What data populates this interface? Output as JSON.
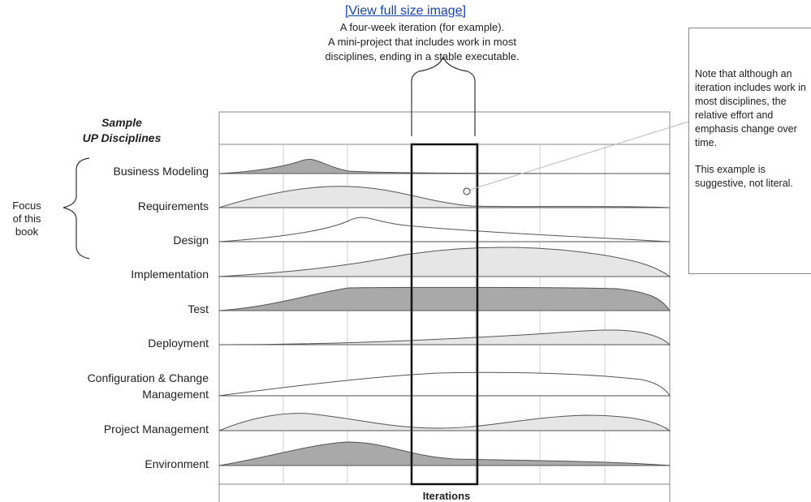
{
  "header": {
    "link_text": "[View full size image]",
    "caption_lines": [
      "A four-week iteration (for example).",
      "A mini-project that includes work in most",
      "disciplines, ending in a stable executable."
    ]
  },
  "diagram": {
    "title_lines": [
      "Sample",
      "UP Disciplines"
    ],
    "focus_lines": [
      "Focus",
      "of this",
      "book"
    ],
    "disciplines": [
      {
        "key": "business-modeling",
        "label_lines": [
          "Business Modeling"
        ],
        "fill": "#a9a9a9"
      },
      {
        "key": "requirements",
        "label_lines": [
          "Requirements"
        ],
        "fill": "#e6e6e6"
      },
      {
        "key": "design",
        "label_lines": [
          "Design"
        ],
        "fill": "#ffffff"
      },
      {
        "key": "implementation",
        "label_lines": [
          "Implementation"
        ],
        "fill": "#e6e6e6"
      },
      {
        "key": "test",
        "label_lines": [
          "Test"
        ],
        "fill": "#a9a9a9"
      },
      {
        "key": "deployment",
        "label_lines": [
          "Deployment"
        ],
        "fill": "#e6e6e6"
      },
      {
        "key": "configuration-change-management",
        "label_lines": [
          "Configuration & Change",
          "Management"
        ],
        "fill": "#ffffff"
      },
      {
        "key": "project-management",
        "label_lines": [
          "Project Management"
        ],
        "fill": "#e6e6e6"
      },
      {
        "key": "environment",
        "label_lines": [
          "Environment"
        ],
        "fill": "#a9a9a9"
      }
    ],
    "x_axis_label": "Iterations"
  },
  "note": {
    "paragraphs": [
      "Note that although an iteration includes work in most disciplines, the relative effort and emphasis change over time.",
      "This example is suggestive, not literal."
    ]
  },
  "colors": {
    "link": "#1a44b8",
    "grid": "#cfcfcf",
    "frame": "#888888",
    "iteration_box": "#111111"
  }
}
